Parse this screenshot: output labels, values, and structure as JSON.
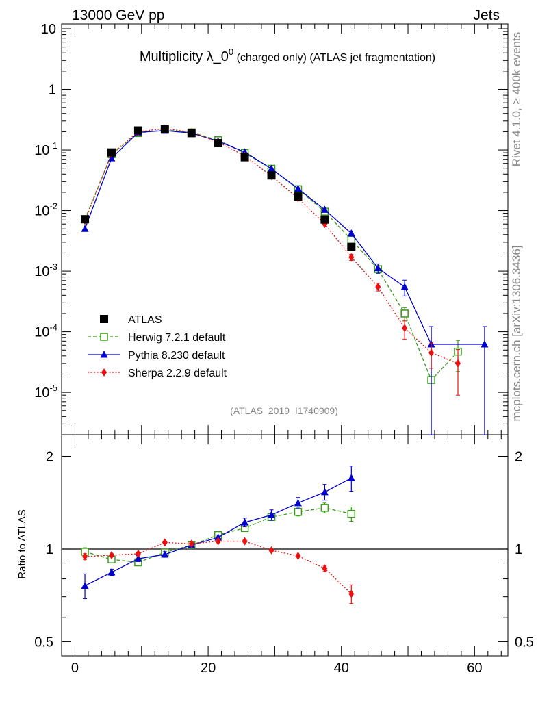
{
  "header": {
    "left_label": "13000 GeV pp",
    "right_label": "Jets"
  },
  "side_labels": {
    "top": "Rivet 4.1.0, ≥ 400k events",
    "bottom": "mcplots.cern.ch [arXiv:1306.3436]"
  },
  "chart_data": [
    {
      "type": "scatter",
      "title": "Multiplicity λ_0⁰ (charged only) (ATLAS jet fragmentation)",
      "title_parts": {
        "main": "Multiplicity λ_0",
        "sup": "0",
        "rest": " (charged only) (ATLAS jet fragmentation)"
      },
      "watermark": "(ATLAS_2019_I1740909)",
      "yscale": "log",
      "xlim": [
        -2,
        65
      ],
      "ylim": [
        2e-06,
        12
      ],
      "y_tick_labels": [
        {
          "base": "10",
          "exp": "-5"
        },
        {
          "base": "10",
          "exp": "-4"
        },
        {
          "base": "10",
          "exp": "-3"
        },
        {
          "base": "10",
          "exp": "-2"
        },
        {
          "base": "10",
          "exp": "-1"
        },
        {
          "base": "1",
          "exp": ""
        },
        {
          "base": "10",
          "exp": ""
        }
      ],
      "legend_position": "lower-left",
      "series": [
        {
          "name": "ATLAS",
          "color": "#000000",
          "marker": "square-filled",
          "x": [
            1.5,
            5.5,
            9.5,
            13.5,
            17.5,
            21.5,
            25.5,
            29.5,
            33.5,
            37.5,
            41.5
          ],
          "y": [
            0.0072,
            0.091,
            0.21,
            0.22,
            0.19,
            0.13,
            0.076,
            0.038,
            0.017,
            0.0071,
            0.0025
          ]
        },
        {
          "name": "Herwig 7.2.1 default",
          "color": "#3a9a1a",
          "marker": "square-open",
          "line": "dashed",
          "x": [
            1.5,
            5.5,
            9.5,
            13.5,
            17.5,
            21.5,
            25.5,
            29.5,
            33.5,
            37.5,
            41.5,
            45.5,
            49.5,
            53.5,
            57.5
          ],
          "y": [
            0.0072,
            0.085,
            0.19,
            0.215,
            0.195,
            0.145,
            0.089,
            0.049,
            0.0225,
            0.0096,
            0.0033,
            0.00108,
            0.0002,
            1.6e-05,
            4.7e-05
          ],
          "err": [
            0,
            0,
            0,
            0,
            0,
            0,
            0,
            0,
            0,
            0,
            0,
            0.00012,
            5e-05,
            0,
            2.5e-05
          ]
        },
        {
          "name": "Pythia 8.230 default",
          "color": "#0000cc",
          "marker": "triangle",
          "line": "solid",
          "x": [
            1.5,
            5.5,
            9.5,
            13.5,
            17.5,
            21.5,
            25.5,
            29.5,
            33.5,
            37.5,
            41.5,
            45.5,
            49.5,
            53.5,
            61.5
          ],
          "y": [
            0.005,
            0.073,
            0.195,
            0.208,
            0.19,
            0.14,
            0.092,
            0.049,
            0.023,
            0.0103,
            0.0042,
            0.00112,
            0.00055,
            6.2e-05,
            6.2e-05
          ],
          "err": [
            0,
            0,
            0,
            0,
            0,
            0,
            0,
            0,
            0,
            0,
            0.0004,
            0.0002,
            0.00016,
            6e-05,
            6e-05
          ]
        },
        {
          "name": "Sherpa 2.2.9 default",
          "color": "#e81010",
          "marker": "diamond",
          "line": "dotted",
          "x": [
            1.5,
            5.5,
            9.5,
            13.5,
            17.5,
            21.5,
            25.5,
            29.5,
            33.5,
            37.5,
            41.5,
            45.5,
            49.5,
            53.5,
            57.5
          ],
          "y": [
            0.0068,
            0.087,
            0.2,
            0.226,
            0.196,
            0.135,
            0.08,
            0.037,
            0.016,
            0.006,
            0.0017,
            0.00055,
            0.000115,
            4.5e-05,
            3e-05
          ],
          "err": [
            0,
            0,
            0,
            0,
            0,
            0,
            0,
            0,
            0,
            0,
            0.0002,
            8e-05,
            4e-05,
            2e-05,
            2.1e-05
          ]
        }
      ]
    },
    {
      "type": "scatter",
      "ylabel": "Ratio to ATLAS",
      "yscale": "log",
      "xlim": [
        -2,
        65
      ],
      "ylim": [
        0.45,
        2.35
      ],
      "y_ticks": [
        0.5,
        1,
        2
      ],
      "y_tick_labels": [
        "0.5",
        "1",
        "2"
      ],
      "x_ticks": [
        0,
        20,
        40,
        60
      ],
      "x_tick_labels": [
        "0",
        "20",
        "40",
        "60"
      ],
      "reference_line": 1,
      "series": [
        {
          "name": "Herwig 7.2.1 default",
          "color": "#3a9a1a",
          "marker": "square-open",
          "line": "dashed",
          "x": [
            1.5,
            5.5,
            9.5,
            13.5,
            17.5,
            21.5,
            25.5,
            29.5,
            33.5,
            37.5,
            41.5
          ],
          "y": [
            0.98,
            0.925,
            0.905,
            0.975,
            1.03,
            1.11,
            1.17,
            1.27,
            1.32,
            1.36,
            1.3
          ],
          "err": [
            0.03,
            0.02,
            0.02,
            0.02,
            0.02,
            0.02,
            0.03,
            0.03,
            0.04,
            0.05,
            0.07
          ]
        },
        {
          "name": "Pythia 8.230 default",
          "color": "#0000cc",
          "marker": "triangle",
          "line": "solid",
          "x": [
            1.5,
            5.5,
            9.5,
            13.5,
            17.5,
            21.5,
            25.5,
            29.5,
            33.5,
            37.5,
            41.5
          ],
          "y": [
            0.76,
            0.84,
            0.93,
            0.96,
            1.03,
            1.09,
            1.22,
            1.29,
            1.41,
            1.53,
            1.7
          ],
          "err": [
            0.07,
            0.02,
            0.02,
            0.02,
            0.02,
            0.02,
            0.04,
            0.05,
            0.06,
            0.09,
            0.16
          ]
        },
        {
          "name": "Sherpa 2.2.9 default",
          "color": "#e81010",
          "marker": "diamond",
          "line": "dotted",
          "x": [
            1.5,
            5.5,
            9.5,
            13.5,
            17.5,
            21.5,
            25.5,
            29.5,
            33.5,
            37.5,
            41.5
          ],
          "y": [
            0.945,
            0.955,
            0.965,
            1.05,
            1.04,
            1.06,
            1.06,
            0.99,
            0.95,
            0.865,
            0.715
          ],
          "err": [
            0.02,
            0.01,
            0.01,
            0.01,
            0.01,
            0.01,
            0.01,
            0.01,
            0.01,
            0.02,
            0.05
          ]
        }
      ]
    }
  ]
}
